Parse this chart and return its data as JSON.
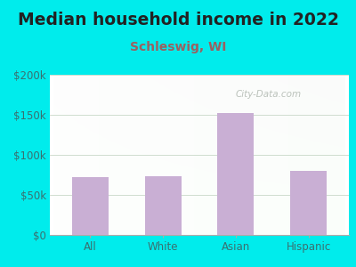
{
  "title": "Median household income in 2022",
  "subtitle": "Schleswig, WI",
  "categories": [
    "All",
    "White",
    "Asian",
    "Hispanic"
  ],
  "values": [
    72000,
    73000,
    152000,
    80000
  ],
  "bar_color": "#c9afd4",
  "background_color": "#00ecec",
  "title_color": "#222222",
  "subtitle_color": "#9b6060",
  "tick_color": "#3a7070",
  "ylim": [
    0,
    200000
  ],
  "yticks": [
    0,
    50000,
    100000,
    150000,
    200000
  ],
  "ytick_labels": [
    "$0",
    "$50k",
    "$100k",
    "$150k",
    "$200k"
  ],
  "watermark": "City-Data.com",
  "title_fontsize": 13.5,
  "subtitle_fontsize": 10,
  "tick_fontsize": 8.5
}
